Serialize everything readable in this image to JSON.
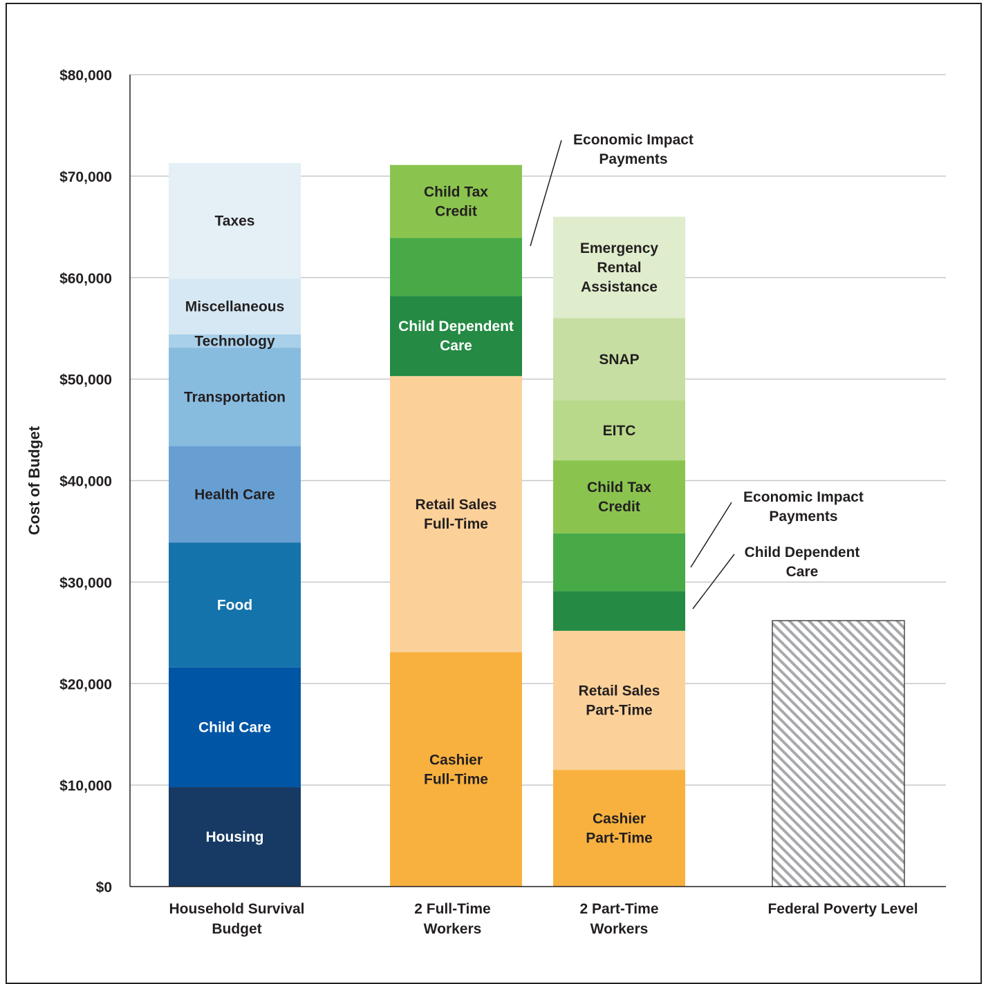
{
  "chart_data": {
    "type": "bar",
    "stacked": true,
    "title": "",
    "xlabel": "",
    "ylabel": "Cost of Budget",
    "ylim": [
      0,
      80000
    ],
    "yticks": [
      0,
      10000,
      20000,
      30000,
      40000,
      50000,
      60000,
      70000,
      80000
    ],
    "ytick_labels": [
      "$0",
      "$10,000",
      "$20,000",
      "$30,000",
      "$40,000",
      "$50,000",
      "$60,000",
      "$70,000",
      "$80,000"
    ],
    "grid": true,
    "categories": [
      [
        "Household Survival",
        "Budget"
      ],
      [
        "2 Full-Time",
        "Workers"
      ],
      [
        "2 Part-Time",
        "Workers"
      ],
      [
        "Federal Poverty Level"
      ]
    ],
    "bars": [
      {
        "category": "Household Survival Budget",
        "segments": [
          {
            "name": "Housing",
            "label": [
              "Housing"
            ],
            "value": 9800,
            "color": "#173a64",
            "text_color": "#ffffff"
          },
          {
            "name": "Child Care",
            "label": [
              "Child Care"
            ],
            "value": 11800,
            "color": "#0055a5",
            "text_color": "#ffffff"
          },
          {
            "name": "Food",
            "label": [
              "Food"
            ],
            "value": 12300,
            "color": "#1473aa",
            "text_color": "#ffffff"
          },
          {
            "name": "Health Care",
            "label": [
              "Health Care"
            ],
            "value": 9500,
            "color": "#679fd3",
            "text_color": "#231f20"
          },
          {
            "name": "Transportation",
            "label": [
              "Transportation"
            ],
            "value": 9700,
            "color": "#88bcdf",
            "text_color": "#231f20"
          },
          {
            "name": "Technology",
            "label": [
              "Technology"
            ],
            "value": 1300,
            "color": "#a9d0ea",
            "text_color": "#231f20"
          },
          {
            "name": "Miscellaneous",
            "label": [
              "Miscellaneous"
            ],
            "value": 5500,
            "color": "#d6e8f4",
            "text_color": "#231f20"
          },
          {
            "name": "Taxes",
            "label": [
              "Taxes"
            ],
            "value": 11400,
            "color": "#e4eff6",
            "text_color": "#231f20"
          }
        ]
      },
      {
        "category": "2 Full-Time Workers",
        "segments": [
          {
            "name": "Cashier Full-Time",
            "label": [
              "Cashier",
              "Full-Time"
            ],
            "value": 23100,
            "color": "#f8b13f",
            "text_color": "#231f20"
          },
          {
            "name": "Retail Sales Full-Time",
            "label": [
              "Retail Sales",
              "Full-Time"
            ],
            "value": 27200,
            "color": "#fcd199",
            "text_color": "#231f20"
          },
          {
            "name": "Child Dependent Care",
            "label": [
              "Child Dependent",
              "Care"
            ],
            "value": 7900,
            "color": "#248a44",
            "text_color": "#ffffff"
          },
          {
            "name": "Economic Impact Payments",
            "label": [],
            "value": 5700,
            "color": "#47aa47",
            "text_color": "#ffffff"
          },
          {
            "name": "Child Tax Credit",
            "label": [
              "Child Tax",
              "Credit"
            ],
            "value": 7200,
            "color": "#8ac44f",
            "text_color": "#231f20"
          }
        ]
      },
      {
        "category": "2 Part-Time Workers",
        "segments": [
          {
            "name": "Cashier Part-Time",
            "label": [
              "Cashier",
              "Part-Time"
            ],
            "value": 11500,
            "color": "#f8b13f",
            "text_color": "#231f20"
          },
          {
            "name": "Retail Sales Part-Time",
            "label": [
              "Retail Sales",
              "Part-Time"
            ],
            "value": 13700,
            "color": "#fcd199",
            "text_color": "#231f20"
          },
          {
            "name": "Child Dependent Care",
            "label": [],
            "value": 3900,
            "color": "#248a44",
            "text_color": "#ffffff"
          },
          {
            "name": "Economic Impact Payments",
            "label": [],
            "value": 5700,
            "color": "#47aa47",
            "text_color": "#ffffff"
          },
          {
            "name": "Child Tax Credit",
            "label": [
              "Child Tax",
              "Credit"
            ],
            "value": 7200,
            "color": "#8ac44f",
            "text_color": "#231f20"
          },
          {
            "name": "EITC",
            "label": [
              "EITC"
            ],
            "value": 5900,
            "color": "#b8d98a",
            "text_color": "#231f20"
          },
          {
            "name": "SNAP",
            "label": [
              "SNAP"
            ],
            "value": 8100,
            "color": "#c7dea2",
            "text_color": "#231f20"
          },
          {
            "name": "Emergency Rental Assistance",
            "label": [
              "Emergency",
              "Rental",
              "Assistance"
            ],
            "value": 10000,
            "color": "#e0edcc",
            "text_color": "#231f20"
          }
        ]
      },
      {
        "category": "Federal Poverty Level",
        "segments": [
          {
            "name": "Federal Poverty Level",
            "label": [],
            "value": 26200,
            "color": "#ffffff",
            "text_color": "#231f20",
            "pattern": "hatched"
          }
        ]
      }
    ],
    "annotations": [
      {
        "text": [
          "Economic Impact",
          "Payments"
        ],
        "bar": 1,
        "segment": 3
      },
      {
        "text": [
          "Economic Impact",
          "Payments"
        ],
        "bar": 2,
        "segment": 3
      },
      {
        "text": [
          "Child Dependent",
          "Care"
        ],
        "bar": 2,
        "segment": 2
      }
    ]
  }
}
